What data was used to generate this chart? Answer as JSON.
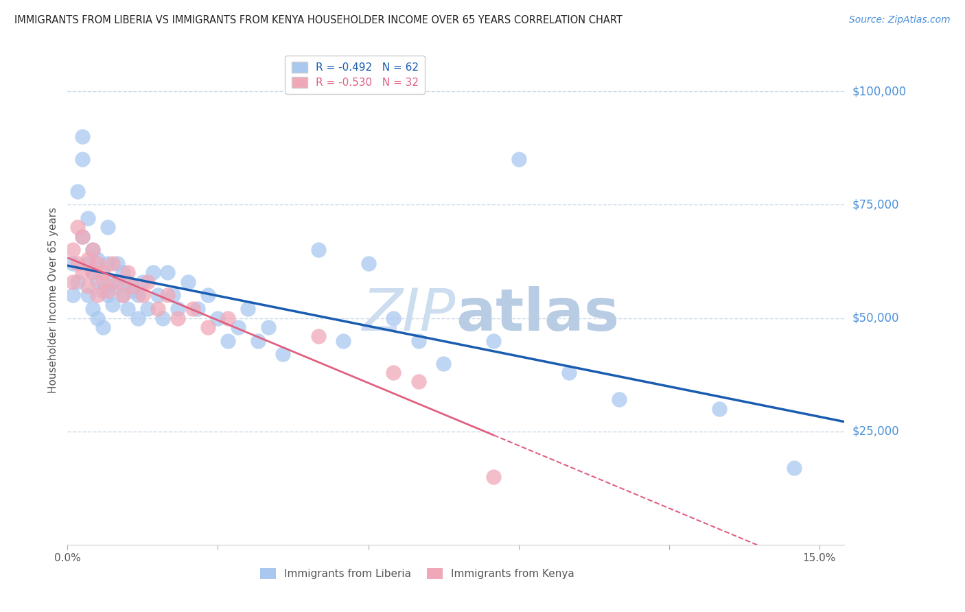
{
  "title": "IMMIGRANTS FROM LIBERIA VS IMMIGRANTS FROM KENYA HOUSEHOLDER INCOME OVER 65 YEARS CORRELATION CHART",
  "source": "Source: ZipAtlas.com",
  "ylabel": "Householder Income Over 65 years",
  "y_tick_labels": [
    "$100,000",
    "$75,000",
    "$50,000",
    "$25,000"
  ],
  "y_tick_values": [
    100000,
    75000,
    50000,
    25000
  ],
  "ylim": [
    0,
    108000
  ],
  "xlim": [
    0.0,
    0.155
  ],
  "liberia_R": "-0.492",
  "liberia_N": "62",
  "kenya_R": "-0.530",
  "kenya_N": "32",
  "liberia_color": "#a8c8f0",
  "kenya_color": "#f0a8b8",
  "liberia_line_color": "#1a5cb0",
  "kenya_line_color": "#e06080",
  "watermark_color": "#ccddf0",
  "background_color": "#ffffff",
  "grid_color": "#c8d8e8",
  "title_color": "#222222",
  "source_color": "#4a90d9",
  "label_color": "#555555",
  "right_label_color": "#4a90d9",
  "liberia_x": [
    0.001,
    0.001,
    0.002,
    0.002,
    0.003,
    0.003,
    0.003,
    0.004,
    0.004,
    0.004,
    0.005,
    0.005,
    0.005,
    0.006,
    0.006,
    0.006,
    0.007,
    0.007,
    0.008,
    0.008,
    0.008,
    0.009,
    0.009,
    0.01,
    0.01,
    0.011,
    0.011,
    0.012,
    0.012,
    0.013,
    0.014,
    0.014,
    0.015,
    0.016,
    0.017,
    0.018,
    0.019,
    0.02,
    0.021,
    0.022,
    0.024,
    0.026,
    0.028,
    0.03,
    0.032,
    0.034,
    0.036,
    0.038,
    0.04,
    0.043,
    0.05,
    0.055,
    0.06,
    0.065,
    0.07,
    0.075,
    0.085,
    0.09,
    0.1,
    0.11,
    0.13,
    0.145
  ],
  "liberia_y": [
    62000,
    55000,
    78000,
    58000,
    85000,
    90000,
    68000,
    55000,
    62000,
    72000,
    60000,
    52000,
    65000,
    58000,
    50000,
    63000,
    56000,
    48000,
    62000,
    55000,
    70000,
    58000,
    53000,
    62000,
    57000,
    55000,
    60000,
    52000,
    58000,
    56000,
    50000,
    55000,
    58000,
    52000,
    60000,
    55000,
    50000,
    60000,
    55000,
    52000,
    58000,
    52000,
    55000,
    50000,
    45000,
    48000,
    52000,
    45000,
    48000,
    42000,
    65000,
    45000,
    62000,
    50000,
    45000,
    40000,
    45000,
    85000,
    38000,
    32000,
    30000,
    17000
  ],
  "kenya_x": [
    0.001,
    0.001,
    0.002,
    0.002,
    0.003,
    0.003,
    0.004,
    0.004,
    0.005,
    0.005,
    0.006,
    0.006,
    0.007,
    0.007,
    0.008,
    0.009,
    0.01,
    0.011,
    0.012,
    0.013,
    0.015,
    0.016,
    0.018,
    0.02,
    0.022,
    0.025,
    0.028,
    0.032,
    0.05,
    0.065,
    0.07,
    0.085
  ],
  "kenya_y": [
    65000,
    58000,
    70000,
    62000,
    68000,
    60000,
    63000,
    57000,
    65000,
    60000,
    62000,
    55000,
    60000,
    58000,
    56000,
    62000,
    58000,
    55000,
    60000,
    57000,
    55000,
    58000,
    52000,
    55000,
    50000,
    52000,
    48000,
    50000,
    46000,
    38000,
    36000,
    15000
  ]
}
